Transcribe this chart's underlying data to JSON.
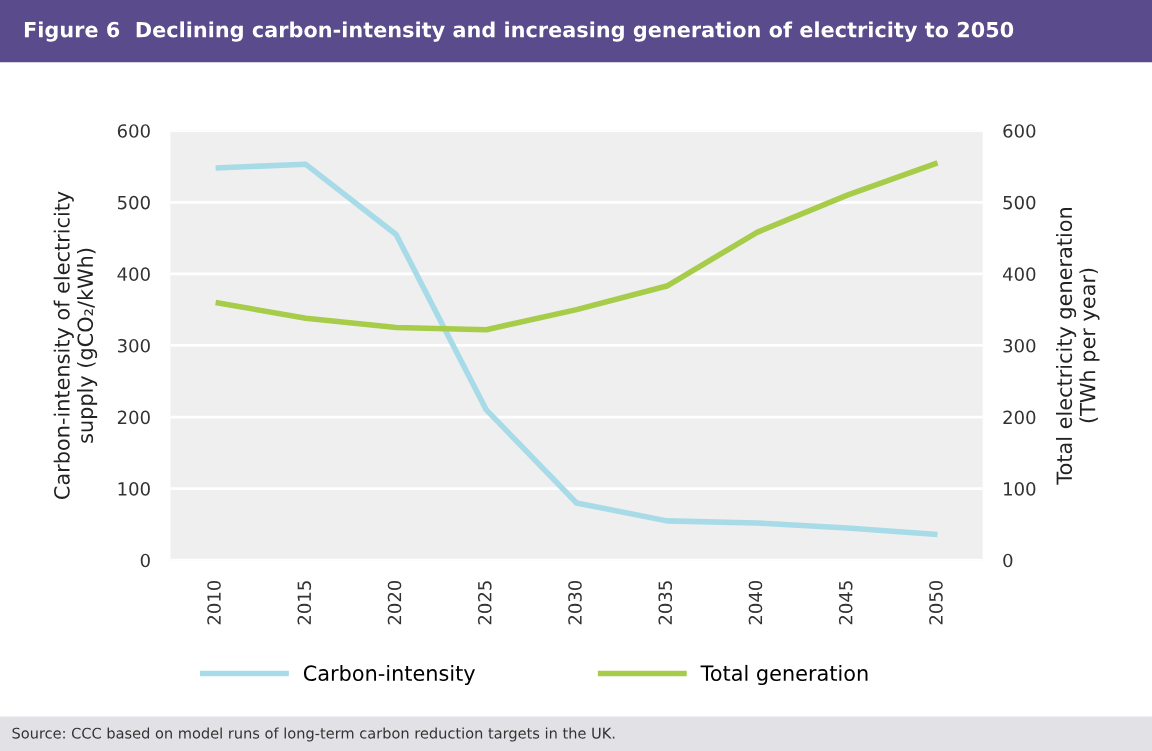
{
  "chart_data": {
    "type": "line",
    "title": "Figure 6  Declining carbon-intensity and increasing generation of electricity to 2050",
    "categories": [
      "2010",
      "2015",
      "2020",
      "2025",
      "2030",
      "2035",
      "2040",
      "2045",
      "2050"
    ],
    "series": [
      {
        "name": "Carbon-intensity",
        "color": "#a8dbe8",
        "values": [
          548,
          553,
          455,
          210,
          80,
          55,
          52,
          45,
          36
        ]
      },
      {
        "name": "Total generation",
        "color": "#a6cc4a",
        "axis": "y2",
        "values": [
          360,
          338,
          325,
          322,
          350,
          383,
          458,
          510,
          555
        ]
      }
    ],
    "ylabel": "Carbon-intensity of electricity\nsupply (gCO₂/kWh)",
    "y2label": "Total electricity generation\n(TWh per year)",
    "ylim": [
      0,
      600
    ],
    "yticks": [
      0,
      100,
      200,
      300,
      400,
      500,
      600
    ],
    "y2lim": [
      0,
      600
    ],
    "y2ticks": [
      0,
      100,
      200,
      300,
      400,
      500,
      600
    ],
    "grid": "y",
    "legend": "bottom",
    "annotations": [
      "Source: CCC based on model runs of long-term carbon reduction targets in the UK."
    ]
  }
}
